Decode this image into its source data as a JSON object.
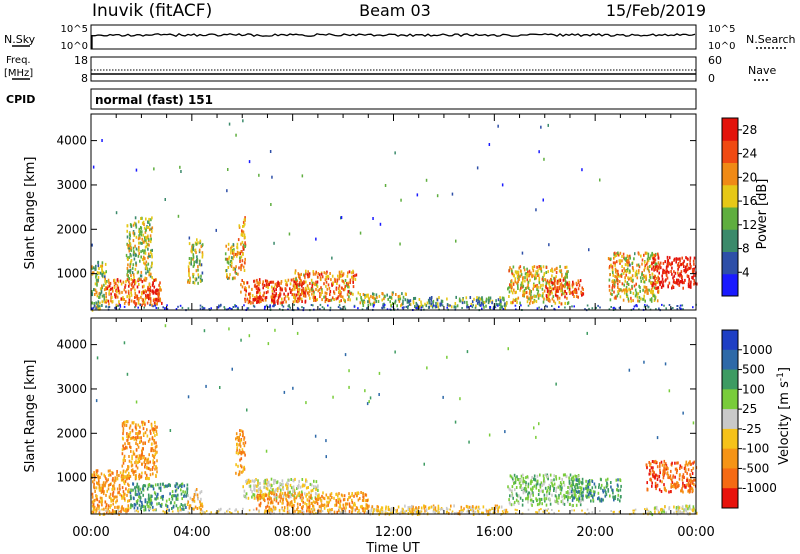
{
  "header": {
    "station": "Inuvik (fitACF)",
    "beam": "Beam 03",
    "date": "15/Feb/2019"
  },
  "noise_panel": {
    "left_label": "N.Sky",
    "left_ticks": [
      "10^5",
      "10^0"
    ],
    "right_label": "N.Search",
    "right_ticks": [
      "10^5",
      "10^0"
    ]
  },
  "freq_panel": {
    "left_label_1": "Freq.",
    "left_label_2": "[MHz]",
    "left_ticks": [
      "18",
      "8"
    ],
    "right_label": "Nave",
    "right_ticks": [
      "60",
      "0"
    ]
  },
  "cpid_panel": {
    "label": "CPID",
    "value": "normal (fast) 151"
  },
  "chart_data": [
    {
      "type": "heatmap",
      "name": "power",
      "xlabel": "",
      "ylabel": "Slant Range [km]",
      "x_ticks": [
        "00:00",
        "04:00",
        "08:00",
        "12:00",
        "16:00",
        "20:00",
        "00:00"
      ],
      "y_ticks": [
        1000,
        2000,
        3000,
        4000
      ],
      "ylim": [
        180,
        4600
      ],
      "xlim_hours": [
        0,
        24
      ],
      "colorbar": {
        "label": "Power [dB]",
        "ticks": [
          4,
          8,
          12,
          16,
          20,
          24,
          28
        ],
        "range": [
          0,
          30
        ],
        "colors": [
          "#1a1aff",
          "#2e4fa8",
          "#3b8a6b",
          "#5fae3f",
          "#e6c817",
          "#f08a15",
          "#f04a12",
          "#e3120b"
        ]
      },
      "regions": [
        {
          "t": [
            0.0,
            0.6
          ],
          "r": [
            200,
            1300
          ],
          "level": 0.45
        },
        {
          "t": [
            0.5,
            2.8
          ],
          "r": [
            300,
            900
          ],
          "level": 0.75
        },
        {
          "t": [
            1.4,
            2.4
          ],
          "r": [
            900,
            2300
          ],
          "level": 0.5
        },
        {
          "t": [
            2.0,
            2.7
          ],
          "r": [
            350,
            700
          ],
          "level": 0.9
        },
        {
          "t": [
            3.8,
            4.4
          ],
          "r": [
            800,
            1800
          ],
          "level": 0.45
        },
        {
          "t": [
            5.3,
            5.8
          ],
          "r": [
            900,
            1700
          ],
          "level": 0.55
        },
        {
          "t": [
            5.8,
            6.1
          ],
          "r": [
            1100,
            2300
          ],
          "level": 0.7
        },
        {
          "t": [
            5.9,
            8.5
          ],
          "r": [
            350,
            900
          ],
          "level": 0.8
        },
        {
          "t": [
            6.4,
            7.6
          ],
          "r": [
            400,
            550
          ],
          "level": 0.95
        },
        {
          "t": [
            8.0,
            10.5
          ],
          "r": [
            400,
            1100
          ],
          "level": 0.7
        },
        {
          "t": [
            10.5,
            12.5
          ],
          "r": [
            300,
            600
          ],
          "level": 0.5
        },
        {
          "t": [
            12.5,
            16.5
          ],
          "r": [
            250,
            500
          ],
          "level": 0.4
        },
        {
          "t": [
            16.5,
            19.0
          ],
          "r": [
            350,
            1200
          ],
          "level": 0.6
        },
        {
          "t": [
            18.0,
            19.5
          ],
          "r": [
            500,
            900
          ],
          "level": 0.8
        },
        {
          "t": [
            20.5,
            22.5
          ],
          "r": [
            400,
            1500
          ],
          "level": 0.6
        },
        {
          "t": [
            22.2,
            24.0
          ],
          "r": [
            700,
            1400
          ],
          "level": 0.95
        }
      ]
    },
    {
      "type": "heatmap",
      "name": "velocity",
      "xlabel": "Time UT",
      "ylabel": "Slant Range [km]",
      "x_ticks": [
        "00:00",
        "04:00",
        "08:00",
        "12:00",
        "16:00",
        "20:00",
        "00:00"
      ],
      "y_ticks": [
        1000,
        2000,
        3000,
        4000
      ],
      "ylim": [
        180,
        4600
      ],
      "xlim_hours": [
        0,
        24
      ],
      "colorbar": {
        "label": "Velocity [m s",
        "label_sup": "-1",
        "ticks": [
          "1000",
          "500",
          "100",
          "25",
          "-25",
          "-100",
          "-500",
          "-1000"
        ],
        "colors": [
          "#1f3fc4",
          "#2e69a8",
          "#3d9b62",
          "#79cc3a",
          "#c9c9c9",
          "#f5c21a",
          "#f59416",
          "#f56a13",
          "#e8120c"
        ]
      },
      "regions": [
        {
          "t": [
            0.0,
            1.5
          ],
          "r": [
            200,
            1200
          ],
          "level": 6
        },
        {
          "t": [
            1.2,
            2.6
          ],
          "r": [
            1000,
            2300
          ],
          "level": 6
        },
        {
          "t": [
            1.5,
            3.8
          ],
          "r": [
            300,
            900
          ],
          "level": 2
        },
        {
          "t": [
            3.8,
            4.4
          ],
          "r": [
            300,
            800
          ],
          "level": 5
        },
        {
          "t": [
            5.7,
            6.1
          ],
          "r": [
            1100,
            2100
          ],
          "level": 6
        },
        {
          "t": [
            6.0,
            9.0
          ],
          "r": [
            550,
            1000
          ],
          "level": 4
        },
        {
          "t": [
            6.5,
            11.0
          ],
          "r": [
            250,
            700
          ],
          "level": 6
        },
        {
          "t": [
            11.0,
            16.5
          ],
          "r": [
            200,
            400
          ],
          "level": 5
        },
        {
          "t": [
            16.5,
            19.5
          ],
          "r": [
            400,
            1100
          ],
          "level": 3
        },
        {
          "t": [
            19.0,
            21.0
          ],
          "r": [
            500,
            1000
          ],
          "level": 2
        },
        {
          "t": [
            22.0,
            24.0
          ],
          "r": [
            700,
            1400
          ],
          "level": 7
        },
        {
          "t": [
            22.0,
            24.0
          ],
          "r": [
            200,
            400
          ],
          "level": 4
        }
      ]
    }
  ]
}
